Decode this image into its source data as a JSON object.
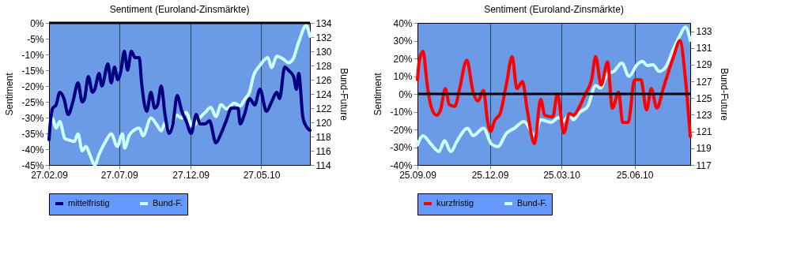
{
  "chart_data": [
    {
      "type": "line",
      "title": "Sentiment (Euroland-Zinsmärkte)",
      "ylabel": "Sentiment",
      "y2label": "Bund-Future",
      "xlim": [
        "2009-02-27",
        "2010-09-08"
      ],
      "xticks": [
        {
          "value": "2009-02-27",
          "label": "27.02.09"
        },
        {
          "value": "2009-07-27",
          "label": "27.07.09"
        },
        {
          "value": "2009-12-27",
          "label": "27.12.09"
        },
        {
          "value": "2010-05-27",
          "label": "27.05.10"
        }
      ],
      "ylim": [
        -45,
        0
      ],
      "yticks": [
        {
          "value": -45,
          "label": "-45%"
        },
        {
          "value": -40,
          "label": "-40%"
        },
        {
          "value": -35,
          "label": "-35%"
        },
        {
          "value": -30,
          "label": "-30%"
        },
        {
          "value": -25,
          "label": "-25%"
        },
        {
          "value": -20,
          "label": "-20%"
        },
        {
          "value": -15,
          "label": "-15%"
        },
        {
          "value": -10,
          "label": "-10%"
        },
        {
          "value": -5,
          "label": "-5%"
        },
        {
          "value": 0,
          "label": "0%"
        }
      ],
      "y2lim": [
        114,
        134
      ],
      "y2ticks": [
        114,
        116,
        118,
        120,
        122,
        124,
        126,
        128,
        130,
        132,
        134
      ],
      "grid": "x",
      "legend": "bottom",
      "ref_lines": [
        {
          "axis": "y",
          "value": 0,
          "color": "#000000"
        }
      ],
      "series": [
        {
          "name": "mittelfristig",
          "color": "#000080",
          "x": [
            "2009-02-27",
            "2009-03-03",
            "2009-03-07",
            "2009-03-14",
            "2009-03-22",
            "2009-03-31",
            "2009-04-09",
            "2009-04-19",
            "2009-04-30",
            "2009-05-09",
            "2009-05-14",
            "2009-05-22",
            "2009-05-31",
            "2009-06-05",
            "2009-06-14",
            "2009-06-20",
            "2009-07-03",
            "2009-07-10",
            "2009-07-17",
            "2009-07-24",
            "2009-07-31",
            "2009-08-07",
            "2009-08-14",
            "2009-08-22",
            "2009-08-30",
            "2009-09-08",
            "2009-09-13",
            "2009-09-24",
            "2009-10-03",
            "2009-10-11",
            "2009-10-17",
            "2009-10-25",
            "2009-11-02",
            "2009-11-11",
            "2009-11-19",
            "2009-11-28",
            "2009-12-08",
            "2009-12-17",
            "2009-12-28",
            "2010-01-08",
            "2010-01-16",
            "2010-01-27",
            "2010-02-05",
            "2010-02-19",
            "2010-03-02",
            "2010-03-13",
            "2010-03-24",
            "2010-04-07",
            "2010-04-12",
            "2010-04-21",
            "2010-05-02",
            "2010-05-13",
            "2010-05-24",
            "2010-06-07",
            "2010-06-18",
            "2010-06-29",
            "2010-07-05",
            "2010-07-16",
            "2010-07-24",
            "2010-08-04",
            "2010-08-10",
            "2010-08-15",
            "2010-08-24",
            "2010-09-01",
            "2010-09-08"
          ],
          "values": [
            -37,
            -30,
            -27,
            -26,
            -22,
            -24,
            -29,
            -25,
            -19,
            -25,
            -24,
            -17,
            -22,
            -21,
            -16,
            -20,
            -13,
            -19,
            -14,
            -18,
            -15,
            -9,
            -15,
            -9,
            -11,
            -11,
            -19,
            -28,
            -22,
            -27,
            -26,
            -20,
            -29,
            -35,
            -32,
            -23,
            -28,
            -31,
            -35,
            -29,
            -32,
            -32,
            -31,
            -38,
            -35,
            -31,
            -27,
            -27,
            -32,
            -29,
            -24,
            -26,
            -21,
            -28,
            -25,
            -22,
            -24,
            -14,
            -15,
            -17,
            -21,
            -16,
            -30,
            -33,
            -34
          ]
        },
        {
          "name": "Bund-F.",
          "color": "#ccffff",
          "axis": "y2",
          "x": [
            "2009-02-27",
            "2009-03-06",
            "2009-03-14",
            "2009-03-22",
            "2009-04-02",
            "2009-04-11",
            "2009-04-22",
            "2009-04-30",
            "2009-05-09",
            "2009-05-17",
            "2009-05-25",
            "2009-06-05",
            "2009-06-14",
            "2009-06-28",
            "2009-07-10",
            "2009-07-23",
            "2009-08-03",
            "2009-08-08",
            "2009-08-17",
            "2009-08-28",
            "2009-09-08",
            "2009-09-16",
            "2009-10-03",
            "2009-10-17",
            "2009-10-25",
            "2009-11-02",
            "2009-11-11",
            "2009-11-27",
            "2009-12-08",
            "2009-12-17",
            "2009-12-31",
            "2010-01-11",
            "2010-01-27",
            "2010-02-08",
            "2010-02-19",
            "2010-03-02",
            "2010-03-13",
            "2010-03-30",
            "2010-04-12",
            "2010-04-21",
            "2010-05-02",
            "2010-05-10",
            "2010-05-24",
            "2010-06-10",
            "2010-06-18",
            "2010-06-29",
            "2010-07-13",
            "2010-07-24",
            "2010-08-02",
            "2010-08-15",
            "2010-08-31",
            "2010-09-08"
          ],
          "values": [
            119.0,
            120.6,
            119.2,
            120.1,
            117.7,
            117.5,
            117.3,
            118.4,
            116.0,
            116.6,
            115.5,
            114.0,
            115.5,
            117.3,
            118.4,
            116.6,
            118.4,
            116.4,
            118.1,
            118.9,
            119.2,
            118.1,
            120.6,
            119.5,
            118.8,
            119.9,
            118.8,
            121.0,
            120.6,
            121.4,
            119.4,
            120.3,
            121.4,
            122.1,
            120.8,
            122.5,
            121.9,
            122.7,
            122.3,
            123.2,
            124.3,
            126.5,
            128.0,
            129.1,
            127.7,
            129.3,
            128.9,
            128.4,
            128.8,
            131.3,
            133.6,
            132.1
          ]
        }
      ]
    },
    {
      "type": "line",
      "title": "Sentiment (Euroland-Zinsmärkte)",
      "ylabel": "Sentiment",
      "y2label": "Bund-Future",
      "xlim": [
        "2009-09-25",
        "2010-09-03"
      ],
      "xticks": [
        {
          "value": "2009-09-25",
          "label": "25.09.09"
        },
        {
          "value": "2009-12-25",
          "label": "25.12.09"
        },
        {
          "value": "2010-03-25",
          "label": "25.03.10"
        },
        {
          "value": "2010-06-25",
          "label": "25.06.10"
        }
      ],
      "ylim": [
        -40,
        40
      ],
      "yticks": [
        {
          "value": -40,
          "label": "-40%"
        },
        {
          "value": -30,
          "label": "-30%"
        },
        {
          "value": -20,
          "label": "-20%"
        },
        {
          "value": -10,
          "label": "-10%"
        },
        {
          "value": 0,
          "label": "0%"
        },
        {
          "value": 10,
          "label": "10%"
        },
        {
          "value": 20,
          "label": "20%"
        },
        {
          "value": 30,
          "label": "30%"
        },
        {
          "value": 40,
          "label": "40%"
        }
      ],
      "y2lim": [
        117,
        134
      ],
      "y2ticks": [
        117,
        119,
        121,
        123,
        125,
        127,
        129,
        131,
        133
      ],
      "grid": "x",
      "legend": "bottom",
      "ref_lines": [
        {
          "axis": "y",
          "value": 0,
          "color": "#000000"
        }
      ],
      "series": [
        {
          "name": "kurzfristig",
          "color": "#ff0000",
          "x": [
            "2009-09-25",
            "2009-09-27",
            "2009-10-02",
            "2009-10-07",
            "2009-10-12",
            "2009-10-19",
            "2009-10-24",
            "2009-10-30",
            "2009-11-04",
            "2009-11-11",
            "2009-11-17",
            "2009-11-26",
            "2009-12-04",
            "2009-12-10",
            "2009-12-17",
            "2009-12-22",
            "2009-12-26",
            "2009-12-31",
            "2010-01-07",
            "2010-01-15",
            "2010-01-22",
            "2010-01-28",
            "2010-02-04",
            "2010-02-10",
            "2010-02-19",
            "2010-02-27",
            "2010-03-04",
            "2010-03-14",
            "2010-03-20",
            "2010-03-28",
            "2010-04-04",
            "2010-04-09",
            "2010-04-17",
            "2010-04-24",
            "2010-05-02",
            "2010-05-07",
            "2010-05-14",
            "2010-05-22",
            "2010-05-28",
            "2010-06-05",
            "2010-06-10",
            "2010-06-17",
            "2010-06-25",
            "2010-07-03",
            "2010-07-10",
            "2010-07-16",
            "2010-07-23",
            "2010-07-31",
            "2010-08-13",
            "2010-08-21",
            "2010-08-28",
            "2010-09-03"
          ],
          "values": [
            8,
            18,
            24,
            6,
            -7,
            -12,
            -9,
            3,
            -6,
            -7,
            3,
            19,
            1,
            -4,
            2,
            -15,
            -21,
            -15,
            -11,
            6,
            21,
            3,
            7,
            -9,
            -28,
            -3,
            -12,
            -13,
            0,
            -22,
            -11,
            -12,
            -7,
            0,
            8,
            21,
            5,
            18,
            -8,
            1,
            -16,
            -16,
            8,
            8,
            -9,
            3,
            -8,
            3,
            21,
            30,
            8,
            -24
          ]
        },
        {
          "name": "Bund-F.",
          "color": "#ccffff",
          "axis": "y2",
          "x": [
            "2009-09-25",
            "2009-10-02",
            "2009-10-12",
            "2009-10-22",
            "2009-10-29",
            "2009-11-06",
            "2009-11-14",
            "2009-11-27",
            "2009-12-04",
            "2009-12-17",
            "2009-12-27",
            "2010-01-04",
            "2010-01-15",
            "2010-01-25",
            "2010-02-06",
            "2010-02-19",
            "2010-02-27",
            "2010-03-12",
            "2010-03-22",
            "2010-03-27",
            "2010-04-04",
            "2010-04-09",
            "2010-04-17",
            "2010-04-27",
            "2010-05-07",
            "2010-05-13",
            "2010-05-22",
            "2010-05-30",
            "2010-06-09",
            "2010-06-18",
            "2010-06-28",
            "2010-07-05",
            "2010-07-11",
            "2010-07-18",
            "2010-07-26",
            "2010-08-03",
            "2010-08-13",
            "2010-08-21",
            "2010-08-28",
            "2010-09-03"
          ],
          "values": [
            119.4,
            120.5,
            119.5,
            118.6,
            119.9,
            118.6,
            119.9,
            121.4,
            120.5,
            121.4,
            119.5,
            119.2,
            120.8,
            121.4,
            122.2,
            120.6,
            122.4,
            122.1,
            122.7,
            122.2,
            123.0,
            122.4,
            123.3,
            124.0,
            126.5,
            126.2,
            127.9,
            128.2,
            129.2,
            127.6,
            129.0,
            129.4,
            128.9,
            129.0,
            128.2,
            128.7,
            130.9,
            132.5,
            133.5,
            131.9
          ]
        }
      ]
    }
  ]
}
